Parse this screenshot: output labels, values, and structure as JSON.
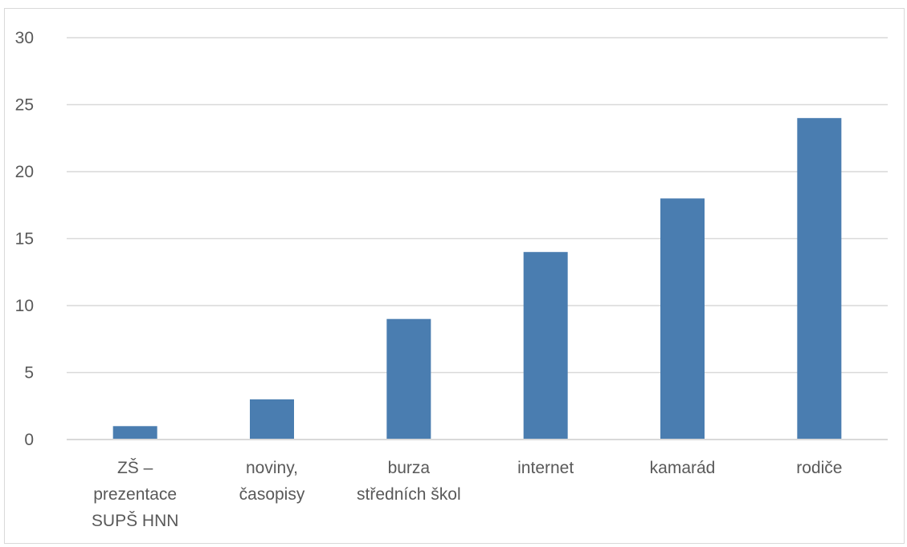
{
  "chart_data": {
    "type": "bar",
    "categories": [
      [
        "ZŠ –",
        "prezentace",
        "SUPŠ HNN"
      ],
      [
        "noviny,",
        "časopisy"
      ],
      [
        "burza",
        "středních škol"
      ],
      [
        "internet"
      ],
      [
        "kamarád"
      ],
      [
        "rodiče"
      ]
    ],
    "series": [
      {
        "values": [
          1,
          3,
          9,
          14,
          18,
          24
        ],
        "color": "#4a7db0"
      }
    ],
    "ylim": [
      0,
      30
    ],
    "yticks": [
      "0",
      "5",
      "10",
      "15",
      "20",
      "25",
      "30"
    ],
    "grid": true,
    "gridColor": "#d9d9d9",
    "legend": "none",
    "title": "",
    "xlabel": "",
    "ylabel": ""
  }
}
